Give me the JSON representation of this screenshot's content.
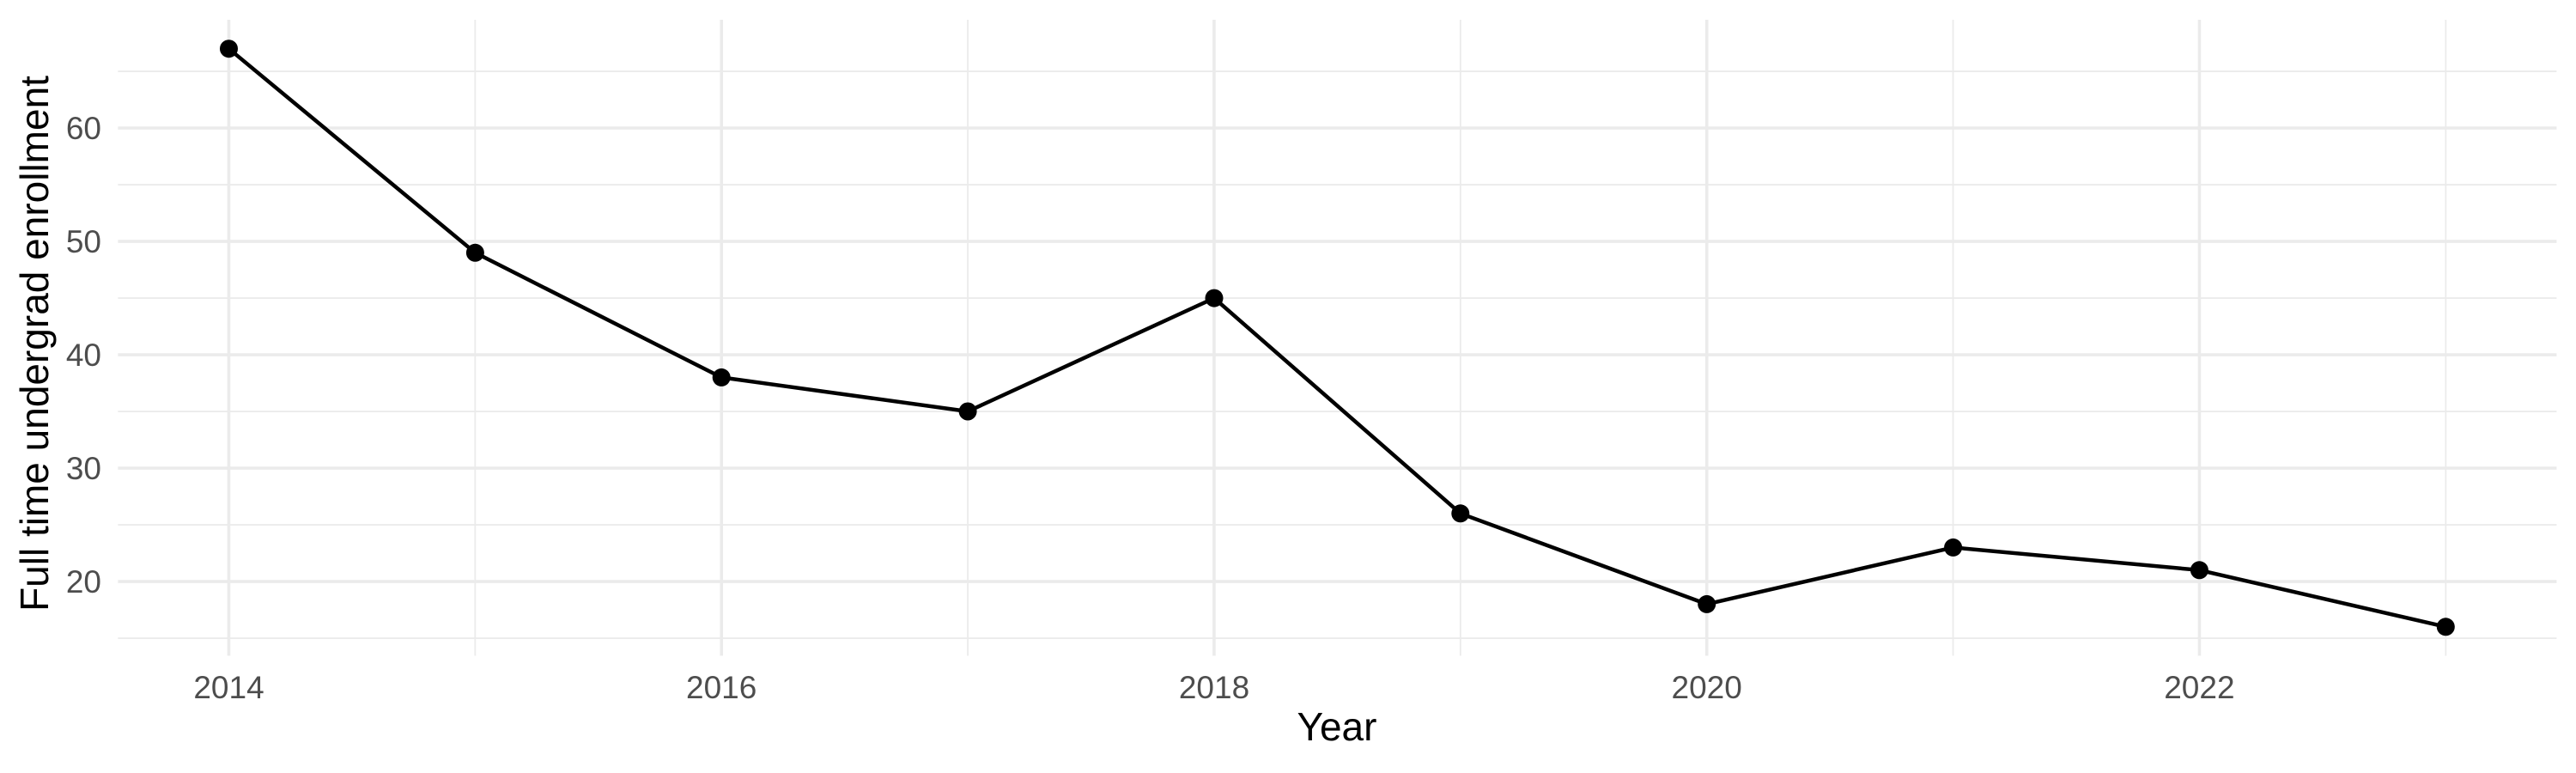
{
  "chart_data": {
    "type": "line",
    "title": "",
    "xlabel": "Year",
    "ylabel": "Full time undergrad enrollment",
    "x": [
      2014,
      2015,
      2016,
      2017,
      2018,
      2019,
      2020,
      2021,
      2022,
      2023
    ],
    "series": [
      {
        "name": "Full time undergrad enrollment",
        "values": [
          67,
          49,
          38,
          35,
          45,
          26,
          18,
          23,
          21,
          16
        ]
      }
    ],
    "xlim": [
      2013.55,
      2023.45
    ],
    "ylim": [
      13.45,
      69.55
    ],
    "x_ticks_major": [
      2014,
      2016,
      2018,
      2020,
      2022
    ],
    "x_ticks_minor": [
      2015,
      2017,
      2019,
      2021,
      2023
    ],
    "y_ticks_major": [
      20,
      30,
      40,
      50,
      60
    ],
    "y_ticks_minor": [
      15,
      25,
      35,
      45,
      55,
      65
    ],
    "x_tick_labels": [
      "2014",
      "2016",
      "2018",
      "2020",
      "2022"
    ],
    "y_tick_labels": [
      "20",
      "30",
      "40",
      "50",
      "60"
    ],
    "grid": true,
    "legend_position": "none",
    "markers": true,
    "colors": {
      "line": "#000000",
      "point": "#000000",
      "grid_major": "#EBEBEB",
      "grid_minor": "#EBEBEB",
      "tick_label": "#4D4D4D",
      "axis_title": "#000000",
      "background": "#FFFFFF"
    }
  }
}
